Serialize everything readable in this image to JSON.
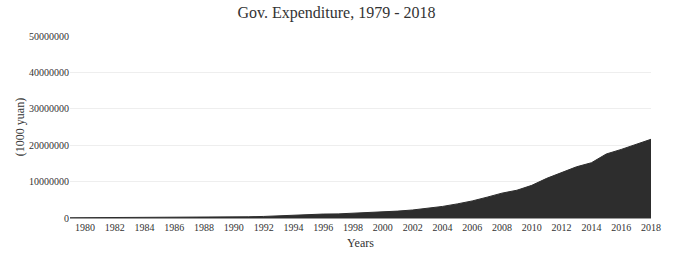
{
  "chart_data": {
    "type": "area",
    "title": "Gov. Expenditure, 1979 - 2018",
    "xlabel": "Years",
    "ylabel": "(1000 yuan)",
    "x": [
      1979,
      1980,
      1981,
      1982,
      1983,
      1984,
      1985,
      1986,
      1987,
      1988,
      1989,
      1990,
      1991,
      1992,
      1993,
      1994,
      1995,
      1996,
      1997,
      1998,
      1999,
      2000,
      2001,
      2002,
      2003,
      2004,
      2005,
      2006,
      2007,
      2008,
      2009,
      2010,
      2011,
      2012,
      2013,
      2014,
      2015,
      2016,
      2017,
      2018
    ],
    "values": [
      67000,
      76000,
      75000,
      85000,
      97000,
      118000,
      142000,
      163000,
      184000,
      222000,
      252000,
      309000,
      338000,
      426000,
      638000,
      818000,
      1000000,
      1083000,
      1130000,
      1319000,
      1545000,
      1589000,
      1893000,
      2202000,
      2640000,
      3173000,
      3877000,
      4686000,
      5722000,
      6833000,
      7629000,
      8977000,
      10893000,
      12572000,
      14064000,
      15181000,
      17588000,
      18832000,
      20337000,
      21628000
    ],
    "color": "#2d2d2d",
    "xlim": [
      1979,
      2018
    ],
    "xticks": [
      1980,
      1982,
      1984,
      1986,
      1988,
      1990,
      1992,
      1994,
      1996,
      1998,
      2000,
      2002,
      2004,
      2006,
      2008,
      2010,
      2012,
      2014,
      2016,
      2018
    ],
    "ylim": [
      0,
      50000000
    ],
    "yticks": [
      0,
      10000000,
      20000000,
      30000000,
      40000000,
      50000000
    ],
    "grid": true
  }
}
